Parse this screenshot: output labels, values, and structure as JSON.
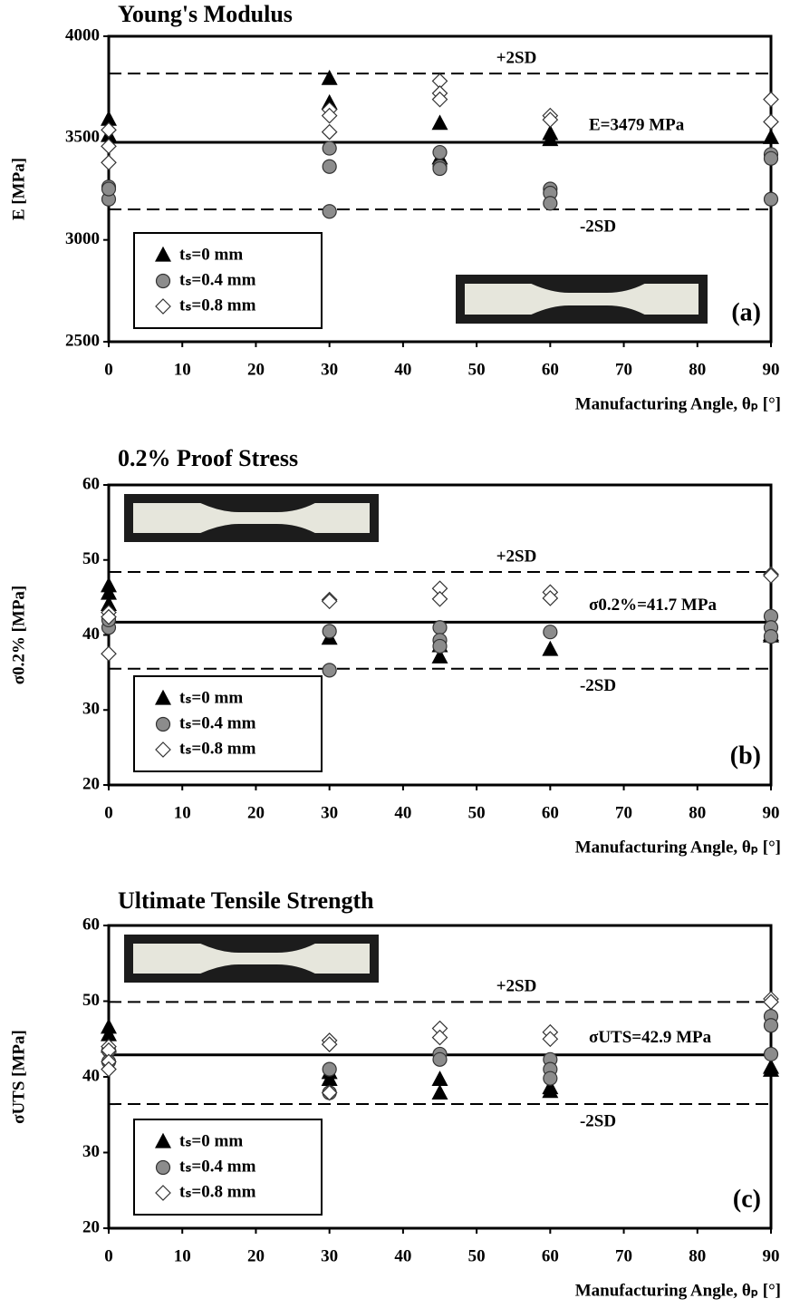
{
  "chart_data": [
    {
      "type": "scatter",
      "title": "Young's Modulus",
      "ylabel": "E [MPa]",
      "xlabel": "Manufacturing Angle, θₚ [°]",
      "panel_label": "(a)",
      "xlim": [
        0,
        90
      ],
      "xticks": [
        0,
        10,
        20,
        30,
        40,
        50,
        60,
        70,
        80,
        90
      ],
      "ylim": [
        2500,
        4000
      ],
      "yticks": [
        2500,
        3000,
        3500,
        4000
      ],
      "series": [
        {
          "name": "tₛ=0 mm",
          "marker": "triangle",
          "color": "#000000",
          "x": [
            0,
            0,
            30,
            30,
            45,
            45,
            60,
            60,
            90
          ],
          "y": [
            3590,
            3510,
            3790,
            3670,
            3570,
            3400,
            3520,
            3490,
            3500
          ]
        },
        {
          "name": "tₛ=0.4 mm",
          "marker": "circle",
          "color": "#8c8c8c",
          "x": [
            0,
            0,
            0,
            30,
            30,
            30,
            45,
            45,
            45,
            60,
            60,
            60,
            90,
            90,
            90
          ],
          "y": [
            3260,
            3200,
            3250,
            3450,
            3360,
            3140,
            3430,
            3360,
            3350,
            3250,
            3230,
            3180,
            3420,
            3400,
            3200
          ]
        },
        {
          "name": "tₛ=0.8 mm",
          "marker": "diamond",
          "color": "#ffffff",
          "x": [
            0,
            0,
            0,
            30,
            30,
            30,
            45,
            45,
            45,
            60,
            60,
            90,
            90
          ],
          "y": [
            3540,
            3380,
            3460,
            3640,
            3610,
            3530,
            3780,
            3720,
            3690,
            3610,
            3590,
            3690,
            3580
          ]
        }
      ],
      "lines": [
        {
          "value": 3479,
          "label": "E=3479 MPa",
          "style": "solid"
        },
        {
          "value": 3817,
          "label": "+2SD",
          "style": "dashed"
        },
        {
          "value": 3150,
          "label": "-2SD",
          "style": "dashed"
        }
      ]
    },
    {
      "type": "scatter",
      "title": "0.2% Proof Stress",
      "ylabel": "σ0.2% [MPa]",
      "xlabel": "Manufacturing Angle, θₚ [°]",
      "panel_label": "(b)",
      "xlim": [
        0,
        90
      ],
      "xticks": [
        0,
        10,
        20,
        30,
        40,
        50,
        60,
        70,
        80,
        90
      ],
      "ylim": [
        20,
        60
      ],
      "yticks": [
        20,
        30,
        40,
        50,
        60
      ],
      "series": [
        {
          "name": "tₛ=0 mm",
          "marker": "triangle",
          "color": "#000000",
          "x": [
            0,
            0,
            0,
            30,
            45,
            45,
            60,
            90,
            90
          ],
          "y": [
            46.5,
            45.5,
            44,
            39.5,
            38.5,
            37,
            38,
            40,
            39.8
          ]
        },
        {
          "name": "tₛ=0.4 mm",
          "marker": "circle",
          "color": "#8c8c8c",
          "x": [
            0,
            0,
            30,
            30,
            45,
            45,
            45,
            60,
            90,
            90,
            90
          ],
          "y": [
            41,
            42,
            40.5,
            35.3,
            41,
            39.3,
            38.5,
            40.4,
            42.5,
            41,
            39.8
          ]
        },
        {
          "name": "tₛ=0.8 mm",
          "marker": "diamond",
          "color": "#ffffff",
          "x": [
            0,
            0,
            0,
            30,
            30,
            45,
            45,
            60,
            60,
            90,
            90
          ],
          "y": [
            43,
            42.4,
            37.5,
            44.7,
            44.5,
            46.2,
            44.8,
            45.7,
            44.9,
            48.1,
            47.9
          ]
        }
      ],
      "lines": [
        {
          "value": 41.7,
          "label": "σ0.2%=41.7 MPa",
          "style": "solid"
        },
        {
          "value": 48.4,
          "label": "+2SD",
          "style": "dashed"
        },
        {
          "value": 35.5,
          "label": "-2SD",
          "style": "dashed"
        }
      ]
    },
    {
      "type": "scatter",
      "title": "Ultimate Tensile Strength",
      "ylabel": "σUTS [MPa]",
      "xlabel": "Manufacturing Angle, θₚ [°]",
      "panel_label": "(c)",
      "xlim": [
        0,
        90
      ],
      "xticks": [
        0,
        10,
        20,
        30,
        40,
        50,
        60,
        70,
        80,
        90
      ],
      "ylim": [
        20,
        60
      ],
      "yticks": [
        20,
        30,
        40,
        50,
        60
      ],
      "series": [
        {
          "name": "tₛ=0 mm",
          "marker": "triangle",
          "color": "#000000",
          "x": [
            0,
            0,
            0,
            30,
            30,
            45,
            45,
            60,
            60,
            90,
            90
          ],
          "y": [
            46.5,
            45.5,
            44,
            40.5,
            39.6,
            39.6,
            37.8,
            38.5,
            38,
            41.2,
            40.8
          ]
        },
        {
          "name": "tₛ=0.4 mm",
          "marker": "circle",
          "color": "#8c8c8c",
          "x": [
            0,
            0,
            30,
            30,
            45,
            45,
            60,
            60,
            60,
            90,
            90,
            90
          ],
          "y": [
            43.5,
            42,
            41,
            37.9,
            43,
            42.3,
            42.3,
            41,
            39.8,
            48,
            46.8,
            43
          ]
        },
        {
          "name": "tₛ=0.8 mm",
          "marker": "diamond",
          "color": "#ffffff",
          "x": [
            0,
            0,
            0,
            0,
            30,
            30,
            30,
            45,
            45,
            60,
            60,
            90,
            90
          ],
          "y": [
            44,
            43.5,
            42,
            41,
            44.8,
            44.3,
            37.9,
            46.4,
            45.2,
            45.9,
            45,
            50.3,
            49.9
          ]
        }
      ],
      "lines": [
        {
          "value": 42.9,
          "label": "σUTS=42.9 MPa",
          "style": "solid"
        },
        {
          "value": 49.9,
          "label": "+2SD",
          "style": "dashed"
        },
        {
          "value": 36.4,
          "label": "-2SD",
          "style": "dashed"
        }
      ]
    }
  ]
}
